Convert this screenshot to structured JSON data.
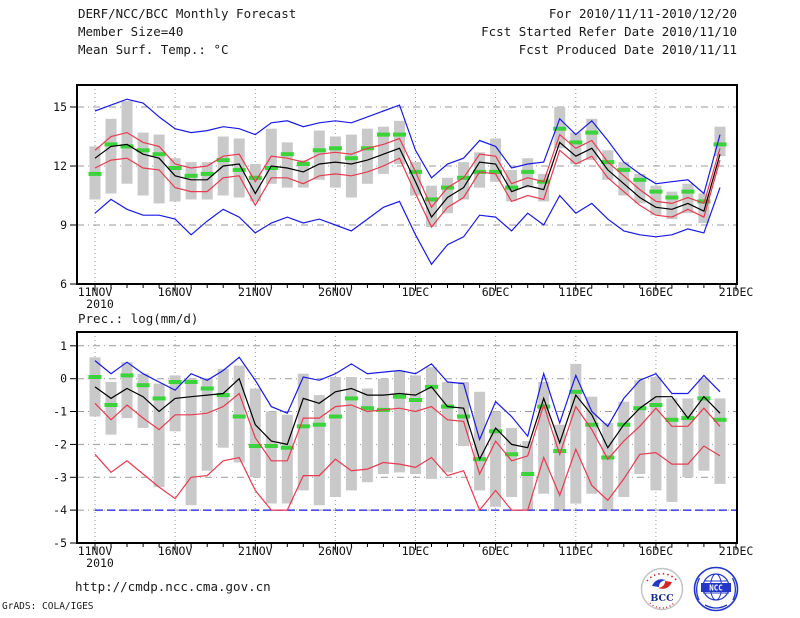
{
  "header": {
    "title": "DERF/NCC/BCC Monthly Forecast",
    "member_size": "Member Size=40",
    "panel1_title": "Mean Surf. Temp.: °C",
    "for_range": "For 2010/11/11-2010/12/20",
    "refer_date": "Fcst Started Refer Date 2010/11/10",
    "produced_date": "Fcst Produced Date 2010/11/11"
  },
  "panel2_title": "Prec.: log(mm/d)",
  "footer": {
    "url": "http://cmdp.ncc.cma.gov.cn",
    "credit": "GrADS: COLA/IGES",
    "logo1_text": "BCC",
    "logo2_text": "NCC"
  },
  "colors": {
    "blue": "#1a1ae6",
    "red": "#e83a50",
    "black": "#000000",
    "green": "#3cd23c",
    "bar_gray": "#c9c9c9",
    "grid_gray": "#999999"
  },
  "chart_data": [
    {
      "type": "line",
      "title": "Mean Surf. Temp.: °C",
      "x_tick_labels": [
        "11NOV",
        "16NOV",
        "21NOV",
        "26NOV",
        "1DEC",
        "6DEC",
        "11DEC",
        "16DEC",
        "21DEC"
      ],
      "x_first_tick_sublabel": "2010",
      "x_tick_interval_days": 5,
      "n_days": 40,
      "ylim": [
        6,
        16.12
      ],
      "y_ticks": [
        6,
        9,
        12,
        15
      ],
      "grid": "on",
      "legend": "none",
      "series": [
        {
          "name": "ensemble-max",
          "color": "blue",
          "values": [
            14.8,
            15.1,
            15.4,
            15.2,
            14.5,
            13.9,
            13.7,
            13.8,
            14.0,
            13.9,
            13.6,
            14.2,
            14.3,
            14.0,
            14.2,
            14.3,
            14.2,
            14.5,
            14.8,
            15.1,
            12.8,
            11.4,
            12.1,
            12.4,
            13.3,
            13.0,
            11.9,
            12.1,
            12.2,
            14.4,
            13.6,
            14.3,
            13.3,
            12.2,
            11.6,
            11.1,
            11.2,
            11.3,
            10.6,
            13.6
          ]
        },
        {
          "name": "ensemble-min",
          "color": "blue",
          "values": [
            9.6,
            10.3,
            9.8,
            9.5,
            9.5,
            9.3,
            8.5,
            9.2,
            9.8,
            9.4,
            8.6,
            9.1,
            9.4,
            9.1,
            9.3,
            9.0,
            8.7,
            9.3,
            9.9,
            10.2,
            8.5,
            7.0,
            8.0,
            8.4,
            9.5,
            9.4,
            8.7,
            9.6,
            9.0,
            10.5,
            9.6,
            10.1,
            9.3,
            8.7,
            8.5,
            8.4,
            8.5,
            8.8,
            8.6,
            10.9
          ]
        },
        {
          "name": "upper-spread",
          "color": "red",
          "values": [
            12.8,
            13.5,
            13.7,
            13.2,
            13.0,
            12.1,
            11.9,
            12.0,
            12.5,
            12.6,
            11.2,
            12.5,
            12.4,
            12.2,
            12.6,
            12.7,
            12.6,
            12.9,
            13.1,
            13.4,
            11.7,
            9.9,
            10.9,
            11.4,
            12.6,
            12.5,
            11.1,
            11.4,
            11.2,
            13.6,
            12.9,
            13.3,
            12.2,
            11.5,
            10.8,
            10.2,
            10.1,
            10.4,
            10.1,
            12.9
          ]
        },
        {
          "name": "lower-spread",
          "color": "red",
          "values": [
            11.9,
            12.3,
            12.4,
            11.9,
            11.8,
            10.9,
            10.7,
            10.7,
            11.4,
            11.5,
            10.0,
            11.4,
            11.4,
            11.1,
            11.5,
            11.6,
            11.5,
            11.7,
            12.0,
            12.4,
            10.6,
            8.9,
            9.9,
            10.4,
            11.7,
            11.6,
            10.2,
            10.5,
            10.3,
            12.8,
            12.1,
            12.5,
            11.4,
            10.7,
            10.0,
            9.5,
            9.4,
            9.8,
            9.4,
            12.3
          ]
        },
        {
          "name": "ensemble-mean",
          "color": "black",
          "values": [
            12.4,
            13.0,
            13.1,
            12.6,
            12.4,
            11.5,
            11.3,
            11.3,
            12.0,
            12.1,
            10.6,
            12.0,
            11.9,
            11.7,
            12.1,
            12.2,
            12.1,
            12.3,
            12.6,
            12.9,
            11.2,
            9.4,
            10.4,
            10.9,
            12.2,
            12.1,
            10.7,
            11.0,
            10.8,
            13.2,
            12.5,
            12.9,
            11.8,
            11.1,
            10.4,
            9.9,
            9.8,
            10.1,
            9.7,
            12.6
          ]
        }
      ],
      "obs_dashes": {
        "name": "daily-analysis",
        "color": "green",
        "values": [
          11.6,
          13.1,
          13.0,
          12.8,
          12.6,
          11.9,
          11.5,
          11.6,
          12.3,
          11.8,
          11.4,
          11.9,
          12.6,
          12.1,
          12.8,
          12.9,
          12.4,
          12.9,
          13.6,
          13.6,
          11.7,
          10.3,
          10.9,
          11.4,
          11.7,
          11.7,
          10.9,
          11.7,
          11.2,
          13.9,
          13.2,
          13.7,
          12.2,
          11.8,
          11.3,
          10.7,
          10.4,
          10.7,
          10.2,
          13.1
        ]
      },
      "spread_bars": {
        "color": "bar_gray",
        "ranges": [
          [
            10.3,
            13.0
          ],
          [
            10.6,
            14.4
          ],
          [
            11.1,
            15.3
          ],
          [
            10.5,
            13.7
          ],
          [
            10.1,
            13.6
          ],
          [
            10.2,
            12.4
          ],
          [
            10.3,
            12.2
          ],
          [
            10.3,
            12.2
          ],
          [
            10.5,
            13.5
          ],
          [
            10.4,
            13.4
          ],
          [
            10.2,
            12.1
          ],
          [
            11.1,
            13.9
          ],
          [
            10.9,
            13.2
          ],
          [
            10.9,
            12.3
          ],
          [
            11.3,
            13.8
          ],
          [
            10.9,
            13.5
          ],
          [
            10.4,
            13.6
          ],
          [
            11.1,
            13.9
          ],
          [
            11.6,
            14.0
          ],
          [
            12.1,
            14.3
          ],
          [
            10.5,
            12.2
          ],
          [
            8.9,
            11.0
          ],
          [
            9.6,
            11.4
          ],
          [
            10.3,
            12.2
          ],
          [
            10.9,
            12.7
          ],
          [
            11.2,
            13.4
          ],
          [
            10.2,
            11.8
          ],
          [
            10.9,
            12.4
          ],
          [
            10.2,
            11.6
          ],
          [
            12.9,
            15.0
          ],
          [
            12.1,
            13.7
          ],
          [
            12.3,
            14.4
          ],
          [
            11.3,
            12.8
          ],
          [
            10.5,
            12.2
          ],
          [
            10.1,
            11.6
          ],
          [
            9.5,
            11.0
          ],
          [
            9.3,
            10.7
          ],
          [
            9.6,
            11.1
          ],
          [
            9.1,
            10.6
          ],
          [
            12.5,
            14.0
          ]
        ]
      }
    },
    {
      "type": "line",
      "title": "Prec.: log(mm/d)",
      "x_tick_labels": [
        "11NOV",
        "16NOV",
        "21NOV",
        "26NOV",
        "1DEC",
        "6DEC",
        "11DEC",
        "16DEC",
        "21DEC"
      ],
      "x_first_tick_sublabel": "2010",
      "x_tick_interval_days": 5,
      "n_days": 40,
      "ylim": [
        -5,
        1.42
      ],
      "y_ticks": [
        1,
        0,
        -1,
        -2,
        -3,
        -4,
        -5
      ],
      "grid": "on",
      "legend": "none",
      "floor_line": {
        "name": "ensemble-min-floor",
        "value": -4,
        "color": "blue",
        "dashed": true
      },
      "series": [
        {
          "name": "ensemble-max",
          "color": "blue",
          "values": [
            0.55,
            0.15,
            0.5,
            0.15,
            -0.1,
            -0.35,
            0.15,
            -0.05,
            0.25,
            0.65,
            -0.05,
            -0.85,
            -1.05,
            0.05,
            -0.05,
            0.15,
            0.45,
            0.15,
            0.2,
            0.25,
            0.15,
            0.45,
            -0.1,
            -0.15,
            -1.85,
            -0.7,
            -1.15,
            -1.75,
            0.15,
            -1.35,
            0.1,
            -1.0,
            -1.45,
            -0.6,
            -0.05,
            0.15,
            -0.45,
            -0.45,
            0.1,
            -0.4
          ]
        },
        {
          "name": "upper-spread",
          "color": "red",
          "values": [
            -0.75,
            -1.25,
            -0.8,
            -1.2,
            -1.55,
            -1.1,
            -1.1,
            -1.05,
            -0.85,
            -0.45,
            -1.8,
            -2.5,
            -2.5,
            -1.2,
            -1.2,
            -0.85,
            -0.8,
            -1.0,
            -0.95,
            -0.9,
            -1.0,
            -0.85,
            -1.25,
            -1.3,
            -2.9,
            -1.9,
            -2.5,
            -2.35,
            -0.8,
            -2.3,
            -0.85,
            -1.55,
            -2.45,
            -1.9,
            -1.45,
            -0.9,
            -1.45,
            -1.45,
            -0.9,
            -1.45
          ]
        },
        {
          "name": "lower-spread",
          "color": "red",
          "values": [
            -2.3,
            -2.85,
            -2.5,
            -2.9,
            -3.3,
            -3.65,
            -3.0,
            -2.95,
            -2.5,
            -2.4,
            -3.4,
            -4.0,
            -4.0,
            -2.95,
            -2.95,
            -2.45,
            -2.8,
            -2.75,
            -2.55,
            -2.6,
            -2.7,
            -2.4,
            -2.95,
            -2.8,
            -4.0,
            -3.4,
            -4.0,
            -4.0,
            -2.4,
            -3.55,
            -2.15,
            -3.25,
            -3.7,
            -3.05,
            -2.3,
            -2.25,
            -2.6,
            -2.6,
            -2.05,
            -2.35
          ]
        },
        {
          "name": "ensemble-mean",
          "color": "black",
          "values": [
            -0.25,
            -0.6,
            -0.3,
            -0.55,
            -1.0,
            -0.6,
            -0.55,
            -0.5,
            -0.45,
            0.0,
            -1.4,
            -1.9,
            -2.0,
            -0.6,
            -0.75,
            -0.4,
            -0.3,
            -0.5,
            -0.5,
            -0.45,
            -0.5,
            -0.25,
            -0.85,
            -0.9,
            -2.45,
            -1.5,
            -2.0,
            -2.1,
            -0.6,
            -1.95,
            -0.5,
            -1.1,
            -2.1,
            -1.4,
            -0.9,
            -0.55,
            -0.55,
            -1.2,
            -0.55,
            -1.05
          ]
        }
      ],
      "obs_dashes": {
        "name": "daily-analysis",
        "color": "green",
        "values": [
          0.05,
          -0.8,
          0.1,
          -0.2,
          -0.6,
          -0.1,
          -0.1,
          -0.3,
          -0.5,
          -1.15,
          -2.05,
          -2.05,
          -2.1,
          -1.45,
          -1.4,
          -1.15,
          -0.6,
          -0.9,
          -0.95,
          -0.55,
          -0.65,
          -0.25,
          -0.85,
          -1.15,
          -2.45,
          -1.6,
          -2.3,
          -2.9,
          -0.85,
          -2.2,
          -0.4,
          -1.4,
          -2.4,
          -1.4,
          -0.9,
          -0.8,
          -1.25,
          -1.2,
          -0.6,
          -1.25
        ]
      },
      "spread_bars": {
        "color": "bar_gray",
        "ranges": [
          [
            -1.15,
            0.65
          ],
          [
            -1.7,
            -0.1
          ],
          [
            -1.2,
            0.5
          ],
          [
            -1.5,
            0.15
          ],
          [
            -3.3,
            -0.15
          ],
          [
            -1.6,
            0.1
          ],
          [
            -3.85,
            0.0
          ],
          [
            -2.8,
            0.0
          ],
          [
            -2.1,
            0.3
          ],
          [
            -2.55,
            0.4
          ],
          [
            -3.0,
            -0.3
          ],
          [
            -3.8,
            -1.0
          ],
          [
            -3.8,
            -1.1
          ],
          [
            -3.4,
            0.15
          ],
          [
            -3.85,
            -0.5
          ],
          [
            -3.6,
            0.05
          ],
          [
            -3.4,
            0.05
          ],
          [
            -3.15,
            -0.3
          ],
          [
            -2.9,
            0.0
          ],
          [
            -2.85,
            0.25
          ],
          [
            -2.9,
            0.1
          ],
          [
            -3.05,
            0.35
          ],
          [
            -2.85,
            -0.1
          ],
          [
            -2.05,
            -0.1
          ],
          [
            -3.4,
            -0.4
          ],
          [
            -3.9,
            -1.0
          ],
          [
            -3.6,
            -1.5
          ],
          [
            -4.0,
            -1.9
          ],
          [
            -3.5,
            -0.1
          ],
          [
            -4.0,
            -1.4
          ],
          [
            -3.8,
            0.45
          ],
          [
            -3.5,
            -0.55
          ],
          [
            -4.0,
            -1.35
          ],
          [
            -3.6,
            -0.7
          ],
          [
            -2.9,
            -0.05
          ],
          [
            -3.4,
            0.05
          ],
          [
            -3.75,
            -0.6
          ],
          [
            -3.0,
            -0.6
          ],
          [
            -2.8,
            0.0
          ],
          [
            -3.2,
            -0.6
          ]
        ]
      }
    }
  ]
}
